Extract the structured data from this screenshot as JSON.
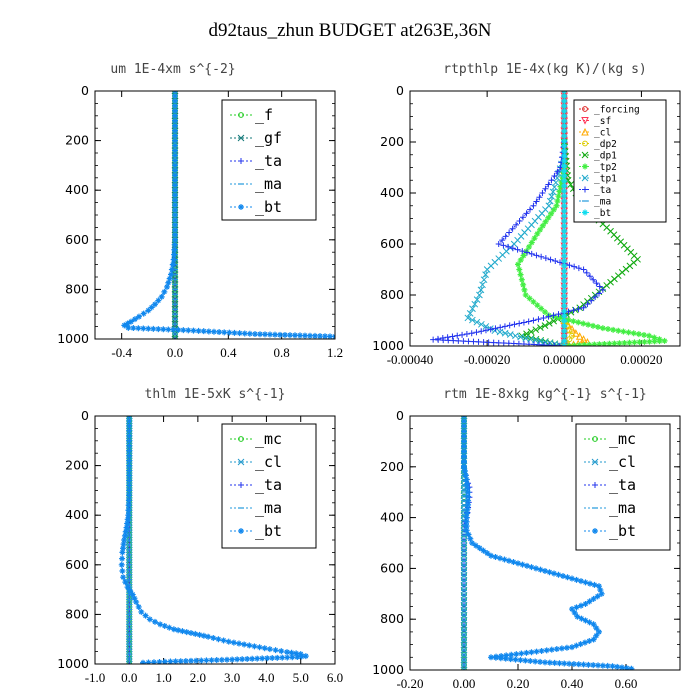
{
  "figure": {
    "title": "d92taus_zhun  BUDGET at263E,36N"
  },
  "chart_data": [
    {
      "type": "line",
      "title": "um  1E-4xm s^{-2}",
      "ylabel": "",
      "xlim": [
        -0.6,
        1.2
      ],
      "ylim": [
        1000,
        0
      ],
      "xticks": [
        "-0.4",
        "0.0",
        "0.4",
        "0.8",
        "1.2"
      ],
      "xtick_values": [
        -0.4,
        0.0,
        0.4,
        0.8,
        1.2
      ],
      "yticks": [
        "0",
        "200",
        "400",
        "600",
        "800",
        "1000"
      ],
      "legend_style": "large",
      "series": [
        {
          "name": "_f",
          "color": "#22cc22",
          "marker": "o",
          "points": [
            [
              0,
              0
            ],
            [
              0,
              100
            ],
            [
              0,
              200
            ],
            [
              0,
              300
            ],
            [
              0,
              400
            ],
            [
              0,
              500
            ],
            [
              0,
              600
            ],
            [
              0,
              700
            ],
            [
              0,
              800
            ],
            [
              0,
              900
            ],
            [
              0,
              1000
            ]
          ]
        },
        {
          "name": "_gf",
          "color": "#117777",
          "marker": "x",
          "points": [
            [
              0,
              0
            ],
            [
              0,
              200
            ],
            [
              0,
              400
            ],
            [
              0,
              600
            ],
            [
              0,
              800
            ],
            [
              0,
              1000
            ]
          ]
        },
        {
          "name": "_ta",
          "color": "#2233ee",
          "marker": "+",
          "points": [
            [
              0,
              0
            ],
            [
              0,
              1000
            ]
          ]
        },
        {
          "name": "_ma",
          "color": "#2299dd",
          "marker": "-",
          "points": [
            [
              0,
              0
            ],
            [
              0,
              1000
            ]
          ]
        },
        {
          "name": "_bt",
          "color": "#1188ee",
          "marker": "*",
          "points": [
            [
              0,
              0
            ],
            [
              0,
              100
            ],
            [
              0,
              200
            ],
            [
              0,
              300
            ],
            [
              0,
              400
            ],
            [
              0,
              500
            ],
            [
              0,
              600
            ],
            [
              -0.01,
              680
            ],
            [
              -0.03,
              740
            ],
            [
              -0.06,
              790
            ],
            [
              -0.1,
              830
            ],
            [
              -0.15,
              860
            ],
            [
              -0.2,
              885
            ],
            [
              -0.27,
              910
            ],
            [
              -0.33,
              930
            ],
            [
              -0.38,
              945
            ],
            [
              -0.35,
              955
            ],
            [
              0.1,
              965
            ],
            [
              0.6,
              980
            ],
            [
              1.2,
              990
            ]
          ]
        }
      ]
    },
    {
      "type": "line",
      "title": "rtpthlp  1E-4x(kg K)/(kg s)",
      "ylabel": "",
      "xlim": [
        -0.0004,
        0.0003
      ],
      "ylim": [
        1000,
        0
      ],
      "xticks": [
        "-0.00040",
        "-0.00020",
        "0.00000",
        "0.00020"
      ],
      "xtick_values": [
        -0.0004,
        -0.0002,
        0.0,
        0.0002
      ],
      "yticks": [
        "0",
        "200",
        "400",
        "600",
        "800",
        "1000"
      ],
      "legend_style": "small",
      "series": [
        {
          "name": "_forcing",
          "color": "#dd2222",
          "marker": "o",
          "points": [
            [
              0,
              0
            ],
            [
              0,
              100
            ],
            [
              0,
              200
            ],
            [
              0,
              300
            ],
            [
              0,
              400
            ],
            [
              0,
              500
            ],
            [
              0,
              600
            ],
            [
              0,
              700
            ],
            [
              0,
              800
            ],
            [
              0,
              900
            ],
            [
              0,
              1000
            ]
          ]
        },
        {
          "name": "_sf",
          "color": "#ff3355",
          "marker": "v",
          "points": [
            [
              0,
              0
            ],
            [
              0,
              1000
            ]
          ]
        },
        {
          "name": "_cl",
          "color": "#ffaa00",
          "marker": "^",
          "points": [
            [
              0,
              900
            ],
            [
              3e-05,
              950
            ],
            [
              6e-05,
              985
            ],
            [
              0,
              1000
            ]
          ]
        },
        {
          "name": "_dp2",
          "color": "#ddcc00",
          "marker": "o",
          "points": [
            [
              0,
              900
            ],
            [
              2e-05,
              960
            ],
            [
              0,
              1000
            ]
          ]
        },
        {
          "name": "_dp1",
          "color": "#11aa11",
          "marker": "x",
          "points": [
            [
              0,
              200
            ],
            [
              1e-05,
              350
            ],
            [
              5e-05,
              450
            ],
            [
              0.00012,
              550
            ],
            [
              0.00019,
              660
            ],
            [
              0.00012,
              750
            ],
            [
              4e-05,
              850
            ],
            [
              -5e-05,
              920
            ],
            [
              -0.00011,
              960
            ],
            [
              0,
              1000
            ]
          ]
        },
        {
          "name": "_tp2",
          "color": "#44ee44",
          "marker": "*",
          "points": [
            [
              0,
              300
            ],
            [
              -2e-05,
              450
            ],
            [
              -7e-05,
              560
            ],
            [
              -0.00012,
              680
            ],
            [
              -0.0001,
              800
            ],
            [
              -4e-05,
              880
            ],
            [
              0.0001,
              930
            ],
            [
              0.00022,
              960
            ],
            [
              0.00026,
              980
            ],
            [
              0,
              1000
            ]
          ]
        },
        {
          "name": "_tp1",
          "color": "#22aacc",
          "marker": "x",
          "points": [
            [
              0,
              250
            ],
            [
              -4e-05,
              450
            ],
            [
              -0.00013,
              600
            ],
            [
              -0.0002,
              700
            ],
            [
              -0.00022,
              800
            ],
            [
              -0.00025,
              890
            ],
            [
              -0.00018,
              940
            ],
            [
              -0.0001,
              970
            ],
            [
              0,
              1000
            ]
          ]
        },
        {
          "name": "_ta",
          "color": "#2233ee",
          "marker": "+",
          "points": [
            [
              0,
              200
            ],
            [
              -1e-05,
              300
            ],
            [
              -8e-05,
              450
            ],
            [
              -0.00017,
              600
            ],
            [
              -6e-05,
              650
            ],
            [
              5e-05,
              700
            ],
            [
              0.0001,
              780
            ],
            [
              5e-05,
              850
            ],
            [
              -8e-05,
              900
            ],
            [
              -0.00024,
              950
            ],
            [
              -0.00034,
              975
            ],
            [
              0,
              1000
            ]
          ]
        },
        {
          "name": "_ma",
          "color": "#2299dd",
          "marker": "-",
          "points": [
            [
              0,
              0
            ],
            [
              0,
              1000
            ]
          ]
        },
        {
          "name": "_bt",
          "color": "#11ddee",
          "marker": "*",
          "points": [
            [
              0,
              0
            ],
            [
              0,
              1000
            ]
          ]
        }
      ]
    },
    {
      "type": "line",
      "title": "thlm  1E-5xK s^{-1}",
      "ylabel": "",
      "xlim": [
        -1.0,
        6.0
      ],
      "ylim": [
        1000,
        0
      ],
      "xticks": [
        "-1.0",
        "0.0",
        "1.0",
        "2.0",
        "3.0",
        "4.0",
        "5.0",
        "6.0"
      ],
      "xtick_values": [
        -1,
        0,
        1,
        2,
        3,
        4,
        5,
        6
      ],
      "yticks": [
        "0",
        "200",
        "400",
        "600",
        "800",
        "1000"
      ],
      "legend_style": "large",
      "series": [
        {
          "name": "_mc",
          "color": "#22cc22",
          "marker": "o",
          "points": [
            [
              0,
              0
            ],
            [
              0,
              100
            ],
            [
              0,
              200
            ],
            [
              0,
              300
            ],
            [
              0,
              400
            ],
            [
              0,
              500
            ],
            [
              0,
              600
            ],
            [
              0,
              700
            ],
            [
              0,
              800
            ],
            [
              0,
              900
            ],
            [
              0,
              1000
            ]
          ]
        },
        {
          "name": "_cl",
          "color": "#2299cc",
          "marker": "x",
          "points": [
            [
              0,
              0
            ],
            [
              0,
              1000
            ]
          ]
        },
        {
          "name": "_ta",
          "color": "#2233ee",
          "marker": "+",
          "points": [
            [
              0,
              0
            ],
            [
              0,
              1000
            ]
          ]
        },
        {
          "name": "_ma",
          "color": "#2299dd",
          "marker": "-",
          "points": [
            [
              0,
              0
            ],
            [
              0,
              1000
            ]
          ]
        },
        {
          "name": "_bt",
          "color": "#1188ee",
          "marker": "*",
          "points": [
            [
              0,
              0
            ],
            [
              0,
              100
            ],
            [
              0,
              200
            ],
            [
              0,
              300
            ],
            [
              -0.03,
              400
            ],
            [
              -0.08,
              450
            ],
            [
              -0.15,
              500
            ],
            [
              -0.2,
              550
            ],
            [
              -0.22,
              600
            ],
            [
              -0.18,
              650
            ],
            [
              -0.05,
              690
            ],
            [
              0.1,
              720
            ],
            [
              0.2,
              750
            ],
            [
              0.35,
              790
            ],
            [
              0.6,
              820
            ],
            [
              0.9,
              840
            ],
            [
              1.3,
              860
            ],
            [
              1.8,
              875
            ],
            [
              2.3,
              890
            ],
            [
              2.9,
              910
            ],
            [
              3.5,
              925
            ],
            [
              4.1,
              940
            ],
            [
              4.6,
              952
            ],
            [
              5.0,
              960
            ],
            [
              5.15,
              968
            ],
            [
              4.9,
              972
            ],
            [
              3.0,
              982
            ],
            [
              1.2,
              990
            ],
            [
              0.4,
              995
            ]
          ]
        }
      ]
    },
    {
      "type": "line",
      "title": "rtm  1E-8xkg kg^{-1} s^{-1}",
      "ylabel": "",
      "xlim": [
        -0.2,
        0.8
      ],
      "ylim": [
        1000,
        0
      ],
      "xticks": [
        "-0.20",
        "0.00",
        "0.20",
        "0.40",
        "0.60"
      ],
      "xtick_values": [
        -0.2,
        0.0,
        0.2,
        0.4,
        0.6
      ],
      "yticks": [
        "0",
        "200",
        "400",
        "600",
        "800",
        "1000"
      ],
      "legend_style": "large",
      "series": [
        {
          "name": "_mc",
          "color": "#22cc22",
          "marker": "o",
          "points": [
            [
              0,
              0
            ],
            [
              0,
              100
            ],
            [
              0,
              200
            ],
            [
              0,
              300
            ],
            [
              0,
              400
            ],
            [
              0,
              500
            ],
            [
              0,
              600
            ],
            [
              0,
              700
            ],
            [
              0,
              800
            ],
            [
              0,
              900
            ],
            [
              0,
              1000
            ]
          ]
        },
        {
          "name": "_cl",
          "color": "#2299cc",
          "marker": "x",
          "points": [
            [
              0,
              0
            ],
            [
              0,
              1000
            ]
          ]
        },
        {
          "name": "_ta",
          "color": "#2233ee",
          "marker": "+",
          "points": [
            [
              0,
              0
            ],
            [
              0,
              200
            ],
            [
              0.01,
              250
            ],
            [
              0.02,
              280
            ],
            [
              0.02,
              320
            ],
            [
              0.015,
              360
            ],
            [
              0.01,
              400
            ],
            [
              0,
              430
            ],
            [
              0,
              1000
            ]
          ]
        },
        {
          "name": "_ma",
          "color": "#2299dd",
          "marker": "-",
          "points": [
            [
              0,
              0
            ],
            [
              0,
              1000
            ]
          ]
        },
        {
          "name": "_bt",
          "color": "#1188ee",
          "marker": "*",
          "points": [
            [
              0,
              0
            ],
            [
              0,
              200
            ],
            [
              0.01,
              250
            ],
            [
              0.015,
              300
            ],
            [
              0.015,
              350
            ],
            [
              0.01,
              400
            ],
            [
              0.01,
              450
            ],
            [
              0.03,
              500
            ],
            [
              0.1,
              550
            ],
            [
              0.2,
              580
            ],
            [
              0.3,
              610
            ],
            [
              0.4,
              640
            ],
            [
              0.5,
              670
            ],
            [
              0.51,
              700
            ],
            [
              0.45,
              740
            ],
            [
              0.4,
              760
            ],
            [
              0.42,
              790
            ],
            [
              0.48,
              820
            ],
            [
              0.5,
              850
            ],
            [
              0.48,
              880
            ],
            [
              0.4,
              910
            ],
            [
              0.25,
              930
            ],
            [
              0.1,
              950
            ],
            [
              0.3,
              970
            ],
            [
              0.55,
              985
            ],
            [
              0.62,
              995
            ]
          ]
        }
      ]
    }
  ]
}
